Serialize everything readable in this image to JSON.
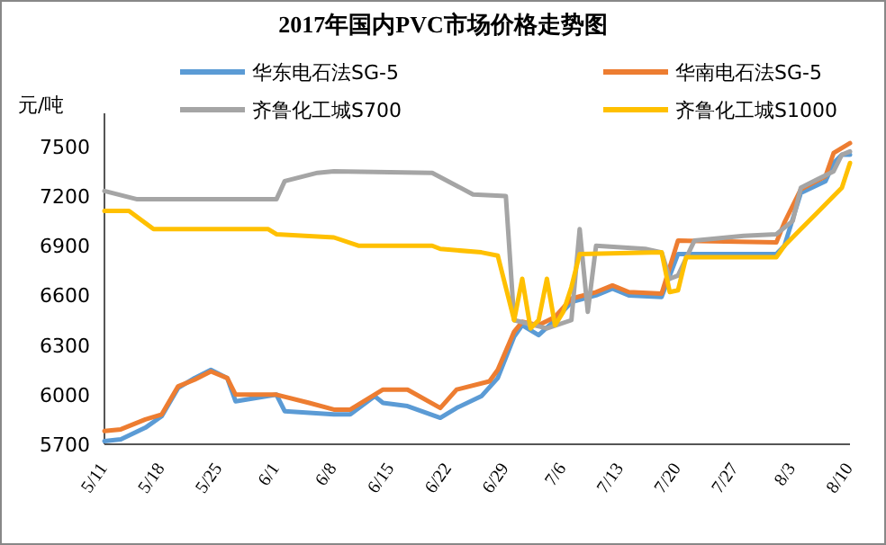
{
  "chart_data": {
    "type": "line",
    "title": "2017年国内PVC市场价格走势图",
    "ylabel": "元/吨",
    "xlim": [
      "2017-05-11",
      "2017-08-10"
    ],
    "xticks": [
      {
        "value": "2017-05-11",
        "label": "5/11"
      },
      {
        "value": "2017-05-18",
        "label": "5/18"
      },
      {
        "value": "2017-05-25",
        "label": "5/25"
      },
      {
        "value": "2017-06-01",
        "label": "6/1"
      },
      {
        "value": "2017-06-08",
        "label": "6/8"
      },
      {
        "value": "2017-06-15",
        "label": "6/15"
      },
      {
        "value": "2017-06-22",
        "label": "6/22"
      },
      {
        "value": "2017-06-29",
        "label": "6/29"
      },
      {
        "value": "2017-07-06",
        "label": "7/6"
      },
      {
        "value": "2017-07-13",
        "label": "7/13"
      },
      {
        "value": "2017-07-20",
        "label": "7/20"
      },
      {
        "value": "2017-07-27",
        "label": "7/27"
      },
      {
        "value": "2017-08-03",
        "label": "8/3"
      },
      {
        "value": "2017-08-10",
        "label": "8/10"
      }
    ],
    "ylim": [
      5700,
      7700
    ],
    "yticks": [
      5700,
      6000,
      6300,
      6600,
      6900,
      7200,
      7500
    ],
    "grid": false,
    "legend": "top",
    "marker": "none",
    "line_style": "solid",
    "series": [
      {
        "name": "华东电石法SG-5",
        "color": "#5b9bd5",
        "x": [
          "2017-05-11",
          "2017-05-13",
          "2017-05-16",
          "2017-05-18",
          "2017-05-20",
          "2017-05-22",
          "2017-05-24",
          "2017-05-26",
          "2017-05-27",
          "2017-06-01",
          "2017-06-02",
          "2017-06-08",
          "2017-06-10",
          "2017-06-13",
          "2017-06-14",
          "2017-06-17",
          "2017-06-21",
          "2017-06-23",
          "2017-06-26",
          "2017-06-28",
          "2017-06-30",
          "2017-07-01",
          "2017-07-03",
          "2017-07-05",
          "2017-07-07",
          "2017-07-10",
          "2017-07-12",
          "2017-07-14",
          "2017-07-18",
          "2017-07-20",
          "2017-08-01",
          "2017-08-02",
          "2017-08-04",
          "2017-08-07",
          "2017-08-08",
          "2017-08-09",
          "2017-08-10"
        ],
        "values": [
          5720,
          5730,
          5800,
          5870,
          6040,
          6100,
          6150,
          6100,
          5960,
          6000,
          5900,
          5880,
          5880,
          5990,
          5950,
          5930,
          5860,
          5920,
          5990,
          6100,
          6350,
          6420,
          6360,
          6450,
          6560,
          6600,
          6640,
          6600,
          6590,
          6850,
          6850,
          6900,
          7220,
          7290,
          7400,
          7450,
          7450
        ]
      },
      {
        "name": "华南电石法SG-5",
        "color": "#ed7d31",
        "x": [
          "2017-05-11",
          "2017-05-13",
          "2017-05-16",
          "2017-05-18",
          "2017-05-20",
          "2017-05-22",
          "2017-05-24",
          "2017-05-26",
          "2017-05-27",
          "2017-06-01",
          "2017-06-05",
          "2017-06-08",
          "2017-06-10",
          "2017-06-14",
          "2017-06-17",
          "2017-06-21",
          "2017-06-23",
          "2017-06-27",
          "2017-06-28",
          "2017-06-30",
          "2017-07-01",
          "2017-07-03",
          "2017-07-05",
          "2017-07-07",
          "2017-07-10",
          "2017-07-12",
          "2017-07-14",
          "2017-07-18",
          "2017-07-20",
          "2017-08-01",
          "2017-08-02",
          "2017-08-04",
          "2017-08-07",
          "2017-08-08",
          "2017-08-10"
        ],
        "values": [
          5780,
          5790,
          5850,
          5880,
          6050,
          6090,
          6140,
          6100,
          6000,
          6000,
          5950,
          5910,
          5910,
          6030,
          6030,
          5920,
          6030,
          6080,
          6150,
          6380,
          6440,
          6420,
          6470,
          6580,
          6620,
          6660,
          6620,
          6610,
          6930,
          6920,
          7040,
          7240,
          7320,
          7460,
          7520
        ]
      },
      {
        "name": "齐鲁化工城S700",
        "color": "#a5a5a5",
        "x": [
          "2017-05-11",
          "2017-05-15",
          "2017-06-01",
          "2017-06-02",
          "2017-06-06",
          "2017-06-08",
          "2017-06-20",
          "2017-06-25",
          "2017-06-29",
          "2017-06-30",
          "2017-07-04",
          "2017-07-07",
          "2017-07-08",
          "2017-07-09",
          "2017-07-10",
          "2017-07-16",
          "2017-07-18",
          "2017-07-19",
          "2017-07-20",
          "2017-07-22",
          "2017-07-28",
          "2017-08-01",
          "2017-08-03",
          "2017-08-04",
          "2017-08-06",
          "2017-08-08",
          "2017-08-09",
          "2017-08-10"
        ],
        "values": [
          7230,
          7180,
          7180,
          7290,
          7340,
          7350,
          7340,
          7210,
          7200,
          6450,
          6400,
          6450,
          7000,
          6500,
          6900,
          6880,
          6860,
          6700,
          6720,
          6930,
          6960,
          6970,
          7050,
          7250,
          7300,
          7350,
          7450,
          7470
        ]
      },
      {
        "name": "齐鲁化工城S1000",
        "color": "#ffc000",
        "x": [
          "2017-05-11",
          "2017-05-14",
          "2017-05-17",
          "2017-05-31",
          "2017-06-01",
          "2017-06-08",
          "2017-06-11",
          "2017-06-20",
          "2017-06-21",
          "2017-06-26",
          "2017-06-28",
          "2017-06-30",
          "2017-07-01",
          "2017-07-02",
          "2017-07-03",
          "2017-07-04",
          "2017-07-05",
          "2017-07-06",
          "2017-07-07",
          "2017-07-08",
          "2017-07-18",
          "2017-07-19",
          "2017-07-20",
          "2017-07-21",
          "2017-08-01",
          "2017-08-02",
          "2017-08-04",
          "2017-08-06",
          "2017-08-08",
          "2017-08-09",
          "2017-08-10"
        ],
        "values": [
          7110,
          7110,
          7000,
          7000,
          6970,
          6950,
          6900,
          6900,
          6880,
          6860,
          6840,
          6450,
          6700,
          6400,
          6450,
          6700,
          6420,
          6500,
          6650,
          6850,
          6860,
          6620,
          6630,
          6830,
          6830,
          6900,
          7000,
          7100,
          7200,
          7250,
          7400
        ]
      }
    ]
  }
}
